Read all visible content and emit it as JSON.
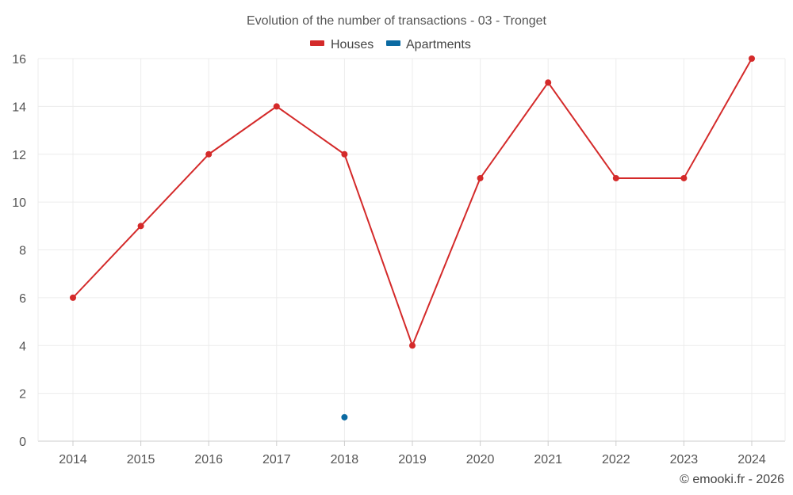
{
  "chart_data": {
    "type": "line",
    "title": "Evolution of the number of transactions - 03 - Tronget",
    "xlabel": "",
    "ylabel": "",
    "categories": [
      "2014",
      "2015",
      "2016",
      "2017",
      "2018",
      "2019",
      "2020",
      "2021",
      "2022",
      "2023",
      "2024"
    ],
    "ylim": [
      0,
      16
    ],
    "yticks": [
      0,
      2,
      4,
      6,
      8,
      10,
      12,
      14,
      16
    ],
    "grid": true,
    "legend_position": "top-center",
    "series": [
      {
        "name": "Houses",
        "color": "#d42a2a",
        "values": [
          6,
          9,
          12,
          14,
          12,
          4,
          11,
          15,
          11,
          11,
          16
        ]
      },
      {
        "name": "Apartments",
        "color": "#0b6aa2",
        "values": [
          null,
          null,
          null,
          null,
          1,
          null,
          null,
          null,
          null,
          null,
          null
        ]
      }
    ]
  },
  "footer": {
    "credit": "© emooki.fr - 2026"
  }
}
